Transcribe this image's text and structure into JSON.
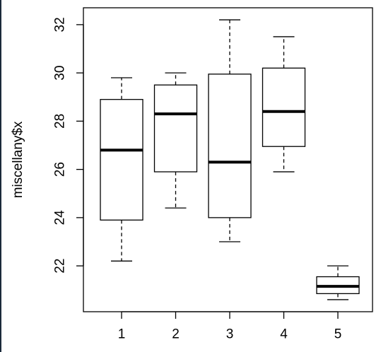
{
  "chart_data": {
    "type": "boxplot",
    "title": "",
    "xlabel": "",
    "ylabel": "miscellany$x",
    "categories": [
      "1",
      "2",
      "3",
      "4",
      "5"
    ],
    "ylim": [
      20.1,
      32.7
    ],
    "y_ticks": [
      "22",
      "24",
      "26",
      "28",
      "30",
      "32"
    ],
    "boxes": [
      {
        "category": "1",
        "whisker_low": 22.2,
        "q1": 23.9,
        "median": 26.8,
        "q3": 28.9,
        "whisker_high": 29.8
      },
      {
        "category": "2",
        "whisker_low": 24.4,
        "q1": 25.9,
        "median": 28.3,
        "q3": 29.5,
        "whisker_high": 30.0
      },
      {
        "category": "3",
        "whisker_low": 23.0,
        "q1": 24.0,
        "median": 26.3,
        "q3": 29.95,
        "whisker_high": 32.2
      },
      {
        "category": "4",
        "whisker_low": 25.9,
        "q1": 26.95,
        "median": 28.4,
        "q3": 30.2,
        "whisker_high": 31.5
      },
      {
        "category": "5",
        "whisker_low": 20.6,
        "q1": 20.85,
        "median": 21.15,
        "q3": 21.55,
        "whisker_high": 22.0
      }
    ],
    "colors": {
      "box_fill": "#ffffff",
      "stroke": "#000000"
    }
  }
}
